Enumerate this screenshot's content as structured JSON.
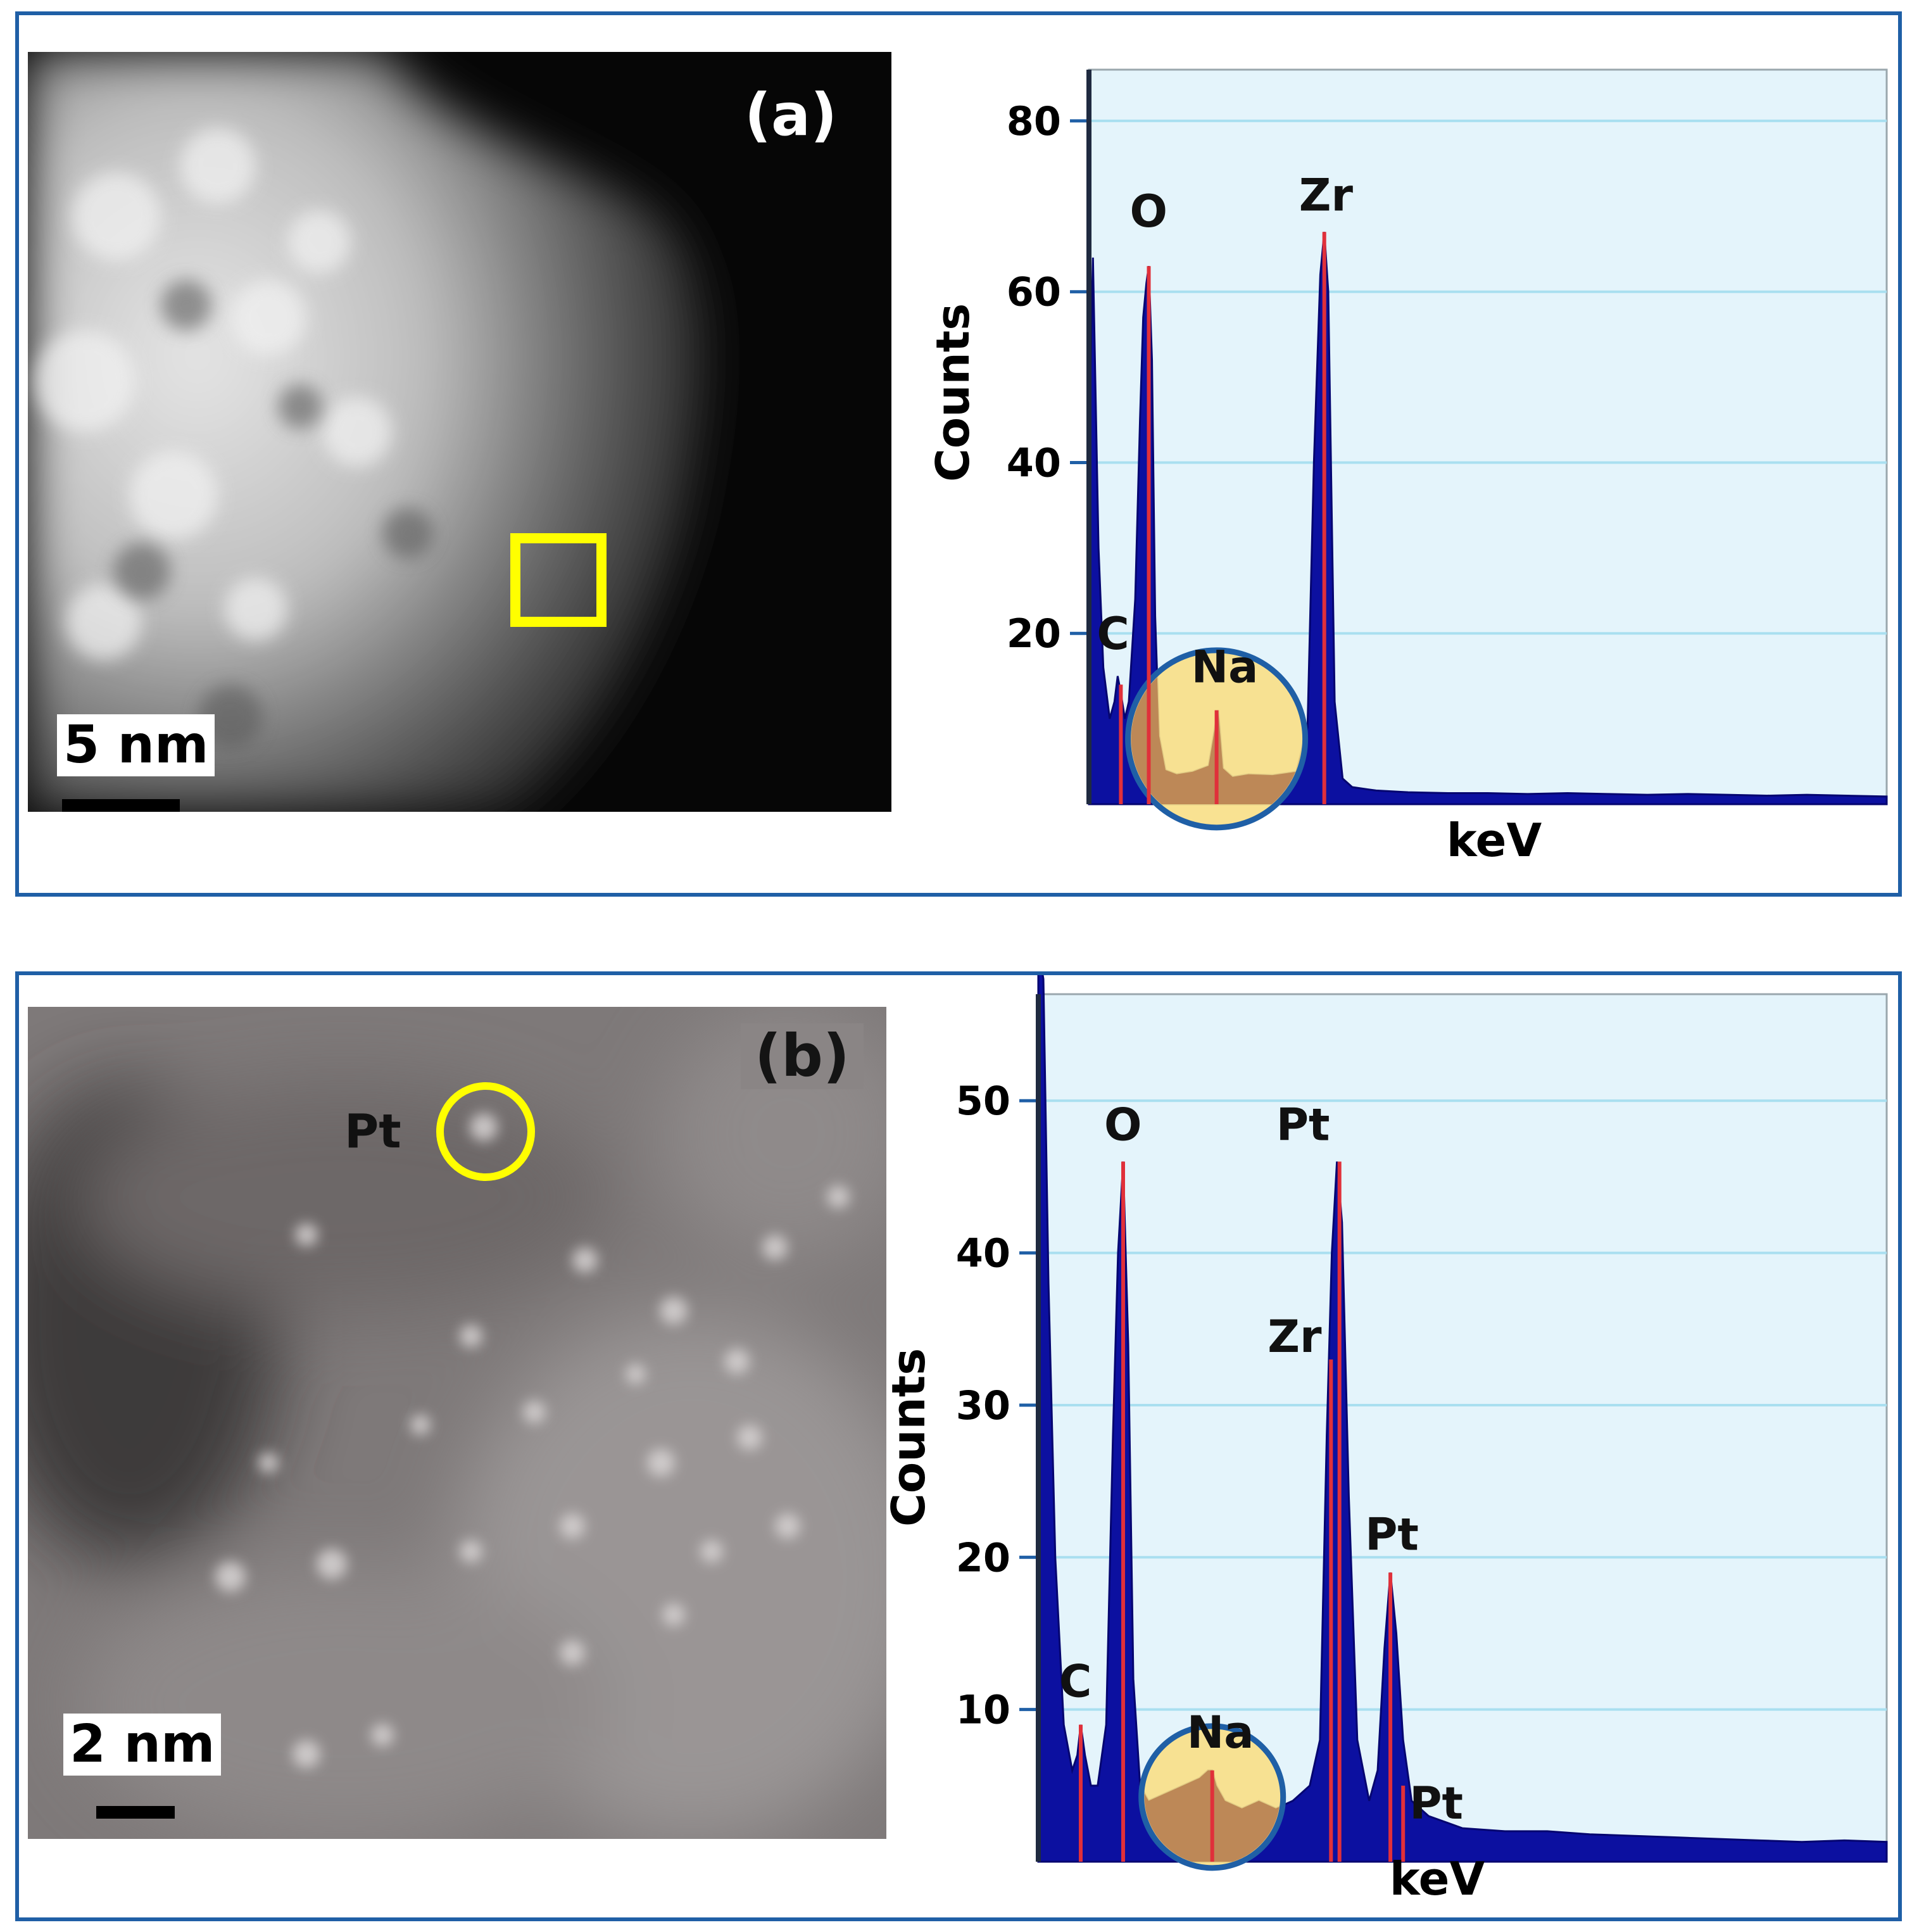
{
  "panels": [
    {
      "label": "(a)",
      "scale_bar": "5 nm",
      "marker": {
        "shape": "square",
        "color": "#ffff00"
      }
    },
    {
      "label": "(b)",
      "scale_bar": "2 nm",
      "marker": {
        "shape": "circle",
        "color": "#ffff00",
        "label": "Pt"
      }
    }
  ],
  "colors": {
    "frame": "#1f5fa6",
    "plot_background": "#e4f4fb",
    "gridline": "#a9dff0",
    "spectrum_fill": "#0c10a0",
    "peak_line": "#e0303a",
    "highlight_fill": "#f8df86",
    "highlight_stroke": "#1f5fa6"
  },
  "chart_data": [
    {
      "type": "area",
      "panel": "(a)",
      "ylabel": "Counts",
      "xlabel": "keV",
      "xlim": [
        0,
        1
      ],
      "ylim": [
        0,
        86
      ],
      "yticks": [
        20,
        40,
        60,
        80
      ],
      "grid": true,
      "peaks": [
        {
          "label": "C",
          "x": 0.04,
          "y": 14
        },
        {
          "label": "O",
          "x": 0.075,
          "y": 63
        },
        {
          "label": "Na",
          "x": 0.16,
          "y": 11
        },
        {
          "label": "Zr",
          "x": 0.295,
          "y": 67
        }
      ],
      "highlight": {
        "label": "Na",
        "x": 0.16,
        "y": 9
      },
      "series": [
        {
          "x": [
            0,
            0.005,
            0.012,
            0.018,
            0.026,
            0.032,
            0.036,
            0.04,
            0.045,
            0.05,
            0.058,
            0.064,
            0.068,
            0.072,
            0.075,
            0.079,
            0.083,
            0.088,
            0.096,
            0.11,
            0.13,
            0.15,
            0.158,
            0.162,
            0.168,
            0.18,
            0.2,
            0.23,
            0.26,
            0.274,
            0.282,
            0.29,
            0.295,
            0.3,
            0.308,
            0.318,
            0.33,
            0.36,
            0.4,
            0.45,
            0.5,
            0.55,
            0.6,
            0.65,
            0.7,
            0.75,
            0.8,
            0.85,
            0.9,
            0.95,
            1.0
          ],
          "y": [
            42,
            64,
            30,
            16,
            10,
            12,
            15,
            13,
            10,
            12,
            24,
            45,
            57,
            61,
            63,
            52,
            22,
            8,
            4,
            3.5,
            3.8,
            4.5,
            9,
            11,
            4.2,
            3.2,
            3.5,
            3.4,
            3.8,
            9,
            40,
            62,
            67,
            60,
            12,
            3,
            2,
            1.6,
            1.4,
            1.3,
            1.3,
            1.2,
            1.3,
            1.2,
            1.1,
            1.2,
            1.1,
            1.0,
            1.1,
            1.0,
            0.9
          ]
        }
      ]
    },
    {
      "type": "area",
      "panel": "(b)",
      "ylabel": "Counts",
      "xlabel": "keV",
      "xlim": [
        0,
        1
      ],
      "ylim": [
        0,
        57
      ],
      "yticks": [
        10,
        20,
        30,
        40,
        50
      ],
      "grid": true,
      "peaks": [
        {
          "label": "C",
          "x": 0.05,
          "y": 9
        },
        {
          "label": "O",
          "x": 0.1,
          "y": 46
        },
        {
          "label": "Na",
          "x": 0.205,
          "y": 6
        },
        {
          "label": "Pt",
          "x": 0.355,
          "y": 46
        },
        {
          "label": "Zr",
          "x": 0.345,
          "y": 33
        },
        {
          "label": "Pt",
          "x": 0.415,
          "y": 19
        },
        {
          "label": "Pt",
          "x": 0.43,
          "y": 5
        }
      ],
      "highlight": {
        "label": "Na",
        "x": 0.205,
        "y": 5
      },
      "series": [
        {
          "x": [
            0,
            0.006,
            0.012,
            0.02,
            0.03,
            0.04,
            0.046,
            0.05,
            0.055,
            0.062,
            0.07,
            0.08,
            0.088,
            0.094,
            0.1,
            0.106,
            0.112,
            0.12,
            0.13,
            0.15,
            0.17,
            0.19,
            0.2,
            0.205,
            0.21,
            0.22,
            0.24,
            0.26,
            0.28,
            0.3,
            0.32,
            0.332,
            0.34,
            0.346,
            0.352,
            0.358,
            0.366,
            0.376,
            0.39,
            0.4,
            0.408,
            0.415,
            0.422,
            0.43,
            0.44,
            0.46,
            0.5,
            0.55,
            0.6,
            0.65,
            0.7,
            0.75,
            0.8,
            0.85,
            0.9,
            0.95,
            1.0
          ],
          "y": [
            60,
            58,
            38,
            20,
            9,
            6,
            7,
            9,
            7,
            5,
            5,
            9,
            28,
            40,
            46,
            34,
            12,
            5,
            4,
            4.5,
            5,
            5.5,
            6,
            6,
            5,
            4,
            3.5,
            4,
            3.5,
            4,
            5,
            8,
            28,
            40,
            46,
            42,
            24,
            8,
            4,
            6,
            14,
            19,
            15,
            8,
            4,
            3,
            2.2,
            2,
            2,
            1.8,
            1.7,
            1.6,
            1.5,
            1.4,
            1.3,
            1.4,
            1.3
          ]
        }
      ]
    }
  ]
}
